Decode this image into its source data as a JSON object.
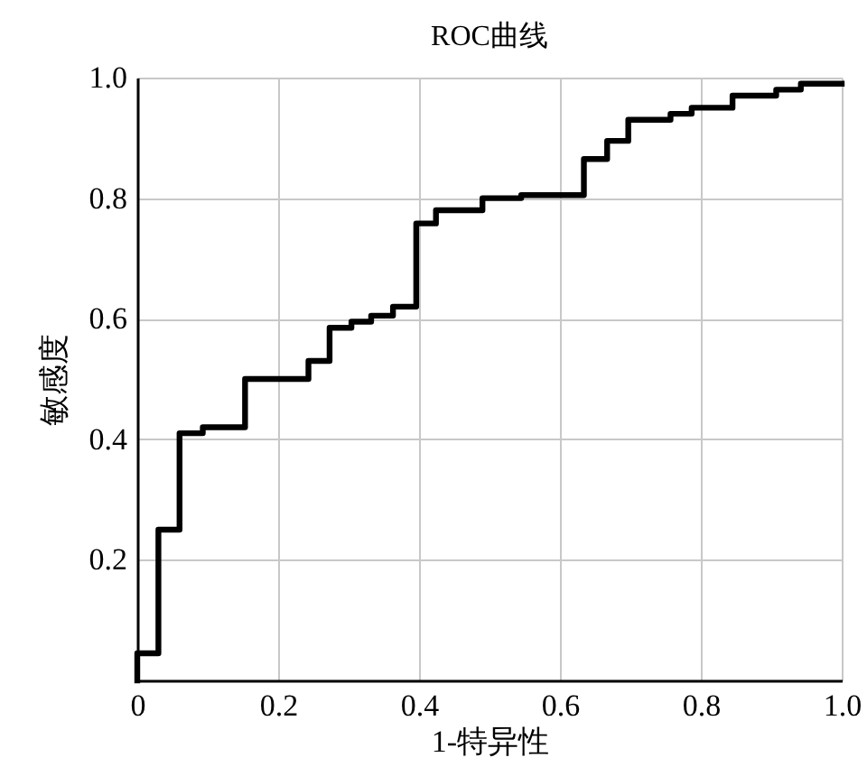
{
  "chart_data": {
    "type": "step",
    "title": "ROC曲线",
    "xlabel": "1-特异性",
    "ylabel": "敏感度",
    "x": [
      0,
      0,
      0.03,
      0.06,
      0.093,
      0.153,
      0.243,
      0.273,
      0.304,
      0.332,
      0.363,
      0.396,
      0.424,
      0.49,
      0.545,
      0.634,
      0.667,
      0.697,
      0.757,
      0.787,
      0.845,
      0.907,
      0.942,
      1.0
    ],
    "series": [
      {
        "color": "#000000",
        "values": [
          0,
          0.045,
          0.25,
          0.41,
          0.42,
          0.5,
          0.53,
          0.585,
          0.595,
          0.605,
          0.62,
          0.758,
          0.78,
          0.8,
          0.805,
          0.865,
          0.895,
          0.93,
          0.94,
          0.95,
          0.97,
          0.98,
          0.99,
          0.99
        ]
      }
    ],
    "xlim": [
      0,
      1.0
    ],
    "ylim": [
      0,
      1.0
    ],
    "xticks": [
      {
        "value": 0,
        "label": "0"
      },
      0.2,
      0.4,
      0.6,
      0.8,
      {
        "value": 1,
        "label": "1.0"
      }
    ],
    "yticks": [
      {
        "value": 0,
        "label": null
      },
      0.2,
      0.4,
      0.6,
      0.8,
      {
        "value": 1,
        "label": "1.0"
      }
    ],
    "grid": true
  }
}
